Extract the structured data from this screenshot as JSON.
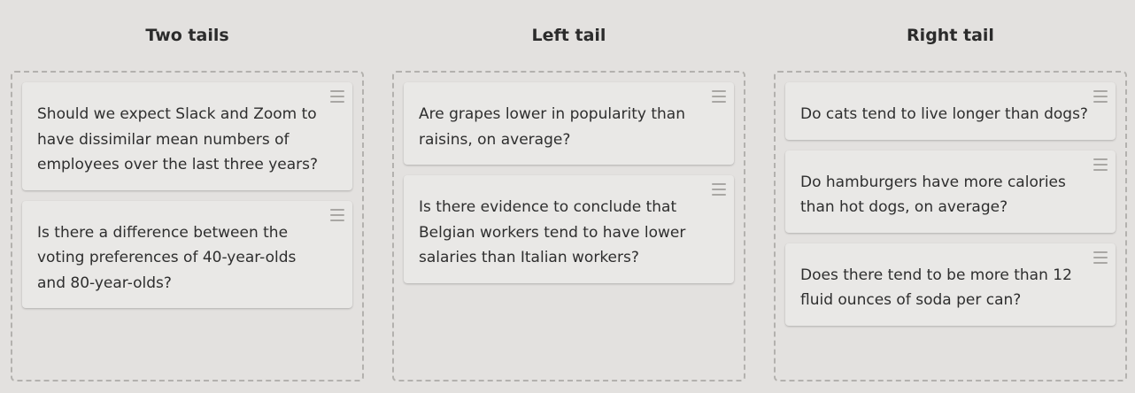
{
  "columns": [
    {
      "title": "Two tails",
      "cards": [
        {
          "text": "Should we expect Slack and Zoom to have dissimilar mean numbers of employees over the last three years?"
        },
        {
          "text": "Is there a difference between the voting preferences of 40-year-olds and 80-year-olds?"
        }
      ]
    },
    {
      "title": "Left tail",
      "cards": [
        {
          "text": "Are grapes lower in popularity than raisins, on average?"
        },
        {
          "text": "Is there evidence to conclude that Belgian workers tend to have lower salaries than Italian workers?"
        }
      ]
    },
    {
      "title": "Right tail",
      "cards": [
        {
          "text": "Do cats tend to live longer than dogs?"
        },
        {
          "text": "Do hamburgers have more calories than hot dogs, on average?"
        },
        {
          "text": "Does there tend to be more than 12 fluid ounces of soda per can?"
        }
      ]
    }
  ],
  "icons": {
    "drag_handle": "drag-handle-icon"
  }
}
